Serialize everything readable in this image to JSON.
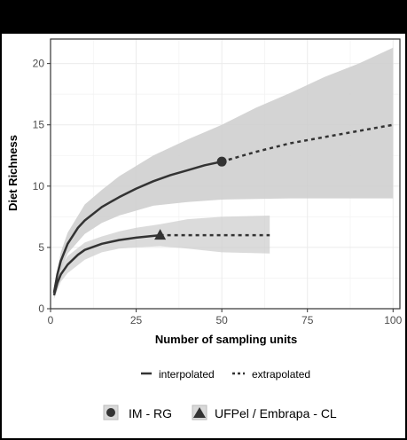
{
  "chart_data": {
    "type": "line",
    "xlabel": "Number of sampling units",
    "ylabel": "Diet Richness",
    "xlim": [
      0,
      102
    ],
    "ylim": [
      0,
      22
    ],
    "x_ticks": [
      "0",
      "25",
      "50",
      "75",
      "100"
    ],
    "y_ticks": [
      "0",
      "5",
      "10",
      "15",
      "20"
    ],
    "grid": true,
    "colors": {
      "line": "#333333",
      "band": "#cccccc",
      "panel_border": "#333333",
      "grid": "#ebebeb"
    },
    "series": [
      {
        "name": "IM - RG",
        "marker": "circle",
        "observed": [
          50,
          12
        ],
        "interpolated": [
          [
            1,
            1.3
          ],
          [
            2,
            2.8
          ],
          [
            3,
            3.9
          ],
          [
            5,
            5.3
          ],
          [
            8,
            6.6
          ],
          [
            10,
            7.2
          ],
          [
            15,
            8.3
          ],
          [
            20,
            9.1
          ],
          [
            25,
            9.8
          ],
          [
            30,
            10.4
          ],
          [
            35,
            10.9
          ],
          [
            40,
            11.3
          ],
          [
            45,
            11.7
          ],
          [
            50,
            12.0
          ]
        ],
        "extrapolated": [
          [
            50,
            12.0
          ],
          [
            60,
            12.8
          ],
          [
            70,
            13.5
          ],
          [
            80,
            14.0
          ],
          [
            90,
            14.5
          ],
          [
            100,
            15.0
          ]
        ],
        "ci_upper": [
          [
            1,
            1.8
          ],
          [
            3,
            4.6
          ],
          [
            5,
            6.2
          ],
          [
            10,
            8.5
          ],
          [
            15,
            9.7
          ],
          [
            20,
            10.8
          ],
          [
            30,
            12.5
          ],
          [
            40,
            13.8
          ],
          [
            50,
            15.0
          ],
          [
            60,
            16.4
          ],
          [
            70,
            17.6
          ],
          [
            80,
            18.9
          ],
          [
            90,
            20.0
          ],
          [
            100,
            21.3
          ]
        ],
        "ci_lower": [
          [
            1,
            1.0
          ],
          [
            3,
            3.2
          ],
          [
            5,
            4.5
          ],
          [
            10,
            6.1
          ],
          [
            15,
            7.0
          ],
          [
            20,
            7.6
          ],
          [
            30,
            8.4
          ],
          [
            40,
            8.7
          ],
          [
            50,
            8.9
          ],
          [
            60,
            8.95
          ],
          [
            70,
            9.0
          ],
          [
            80,
            9.0
          ],
          [
            90,
            9.0
          ],
          [
            100,
            9.0
          ]
        ]
      },
      {
        "name": "UFPel / Embrapa - CL",
        "marker": "triangle",
        "observed": [
          32,
          6
        ],
        "interpolated": [
          [
            1,
            1.1
          ],
          [
            2,
            2.1
          ],
          [
            3,
            2.8
          ],
          [
            5,
            3.6
          ],
          [
            8,
            4.4
          ],
          [
            10,
            4.8
          ],
          [
            15,
            5.3
          ],
          [
            20,
            5.6
          ],
          [
            25,
            5.8
          ],
          [
            32,
            6.0
          ]
        ],
        "extrapolated": [
          [
            32,
            6.0
          ],
          [
            40,
            6.0
          ],
          [
            50,
            6.0
          ],
          [
            64,
            6.0
          ]
        ],
        "ci_upper": [
          [
            1,
            1.4
          ],
          [
            3,
            3.4
          ],
          [
            5,
            4.3
          ],
          [
            10,
            5.4
          ],
          [
            15,
            5.9
          ],
          [
            20,
            6.3
          ],
          [
            25,
            6.6
          ],
          [
            32,
            6.9
          ],
          [
            40,
            7.3
          ],
          [
            50,
            7.5
          ],
          [
            64,
            7.6
          ]
        ],
        "ci_lower": [
          [
            1,
            0.8
          ],
          [
            3,
            2.2
          ],
          [
            5,
            2.9
          ],
          [
            10,
            4.0
          ],
          [
            15,
            4.6
          ],
          [
            20,
            4.9
          ],
          [
            25,
            5.0
          ],
          [
            32,
            5.1
          ],
          [
            40,
            4.9
          ],
          [
            50,
            4.6
          ],
          [
            64,
            4.5
          ]
        ]
      }
    ],
    "legend_method": {
      "interpolated": "interpolated",
      "extrapolated": "extrapolated"
    },
    "legend_position": "bottom"
  }
}
